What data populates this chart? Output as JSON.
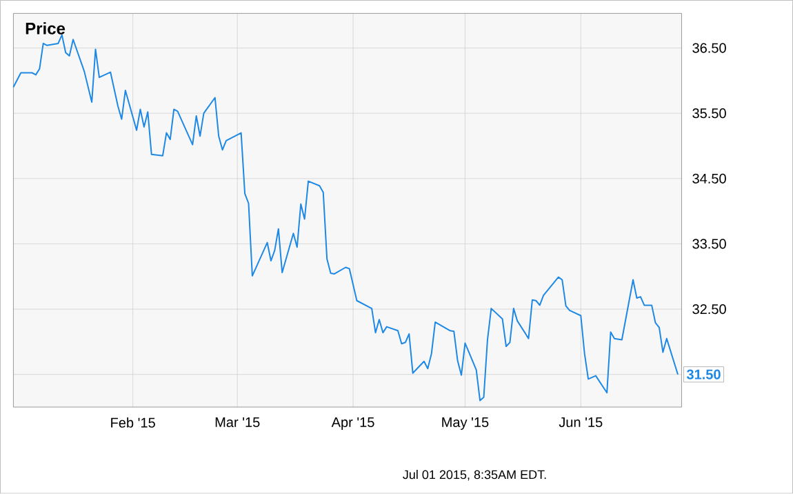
{
  "chart_data": {
    "type": "line",
    "title": "Price",
    "color": "#1e88e5",
    "grid": true,
    "xlim": [
      "2014-12-31",
      "2015-06-28"
    ],
    "ylim": [
      31.0,
      37.03
    ],
    "xticks": [
      {
        "value": "2015-02-01",
        "label": "Feb '15"
      },
      {
        "value": "2015-03-01",
        "label": "Mar '15"
      },
      {
        "value": "2015-04-01",
        "label": "Apr '15"
      },
      {
        "value": "2015-05-01",
        "label": "May '15"
      },
      {
        "value": "2015-06-01",
        "label": "Jun '15"
      }
    ],
    "yticks": [
      {
        "value": 31.5,
        "label": null
      },
      {
        "value": 32.5,
        "label": "32.50"
      },
      {
        "value": 33.5,
        "label": "33.50"
      },
      {
        "value": 34.5,
        "label": "34.50"
      },
      {
        "value": 35.5,
        "label": "35.50"
      },
      {
        "value": 36.5,
        "label": "36.50"
      }
    ],
    "x": [
      "2014-12-31",
      "2015-01-02",
      "2015-01-05",
      "2015-01-06",
      "2015-01-07",
      "2015-01-08",
      "2015-01-09",
      "2015-01-12",
      "2015-01-13",
      "2015-01-14",
      "2015-01-15",
      "2015-01-16",
      "2015-01-19",
      "2015-01-21",
      "2015-01-22",
      "2015-01-23",
      "2015-01-26",
      "2015-01-28",
      "2015-01-29",
      "2015-01-30",
      "2015-02-02",
      "2015-02-03",
      "2015-02-04",
      "2015-02-05",
      "2015-02-06",
      "2015-02-09",
      "2015-02-10",
      "2015-02-11",
      "2015-02-12",
      "2015-02-13",
      "2015-02-17",
      "2015-02-18",
      "2015-02-19",
      "2015-02-20",
      "2015-02-23",
      "2015-02-24",
      "2015-02-25",
      "2015-02-26",
      "2015-03-02",
      "2015-03-03",
      "2015-03-04",
      "2015-03-05",
      "2015-03-09",
      "2015-03-10",
      "2015-03-11",
      "2015-03-12",
      "2015-03-13",
      "2015-03-16",
      "2015-03-17",
      "2015-03-18",
      "2015-03-19",
      "2015-03-20",
      "2015-03-23",
      "2015-03-24",
      "2015-03-25",
      "2015-03-26",
      "2015-03-27",
      "2015-03-30",
      "2015-03-31",
      "2015-04-02",
      "2015-04-06",
      "2015-04-07",
      "2015-04-08",
      "2015-04-09",
      "2015-04-10",
      "2015-04-13",
      "2015-04-14",
      "2015-04-15",
      "2015-04-16",
      "2015-04-17",
      "2015-04-20",
      "2015-04-21",
      "2015-04-22",
      "2015-04-23",
      "2015-04-27",
      "2015-04-28",
      "2015-04-29",
      "2015-04-30",
      "2015-05-01",
      "2015-05-04",
      "2015-05-05",
      "2015-05-06",
      "2015-05-07",
      "2015-05-08",
      "2015-05-11",
      "2015-05-12",
      "2015-05-13",
      "2015-05-14",
      "2015-05-15",
      "2015-05-18",
      "2015-05-19",
      "2015-05-20",
      "2015-05-21",
      "2015-05-22",
      "2015-05-26",
      "2015-05-27",
      "2015-05-28",
      "2015-05-29",
      "2015-06-01",
      "2015-06-02",
      "2015-06-03",
      "2015-06-05",
      "2015-06-08",
      "2015-06-09",
      "2015-06-10",
      "2015-06-12",
      "2015-06-15",
      "2015-06-16",
      "2015-06-17",
      "2015-06-18",
      "2015-06-20",
      "2015-06-21",
      "2015-06-22",
      "2015-06-23",
      "2015-06-24",
      "2015-06-27"
    ],
    "values": [
      35.9,
      36.12,
      36.12,
      36.09,
      36.18,
      36.57,
      36.54,
      36.57,
      36.7,
      36.43,
      36.38,
      36.63,
      36.14,
      35.67,
      36.48,
      36.05,
      36.13,
      35.61,
      35.41,
      35.85,
      35.24,
      35.56,
      35.29,
      35.52,
      34.87,
      34.85,
      35.2,
      35.1,
      35.56,
      35.53,
      35.02,
      35.46,
      35.15,
      35.5,
      35.74,
      35.15,
      34.94,
      35.08,
      35.2,
      34.27,
      34.12,
      33.01,
      33.52,
      33.24,
      33.4,
      33.73,
      33.06,
      33.66,
      33.45,
      34.11,
      33.88,
      34.46,
      34.39,
      34.29,
      33.27,
      33.05,
      33.04,
      33.14,
      33.12,
      32.63,
      32.51,
      32.14,
      32.34,
      32.14,
      32.23,
      32.17,
      31.97,
      31.99,
      32.12,
      31.52,
      31.7,
      31.59,
      31.82,
      32.3,
      32.17,
      32.16,
      31.71,
      31.49,
      31.98,
      31.57,
      31.1,
      31.15,
      32.03,
      32.51,
      32.35,
      31.93,
      31.99,
      32.51,
      32.32,
      32.05,
      32.64,
      32.63,
      32.56,
      32.71,
      32.99,
      32.95,
      32.55,
      32.48,
      32.4,
      31.82,
      31.43,
      31.48,
      31.22,
      32.15,
      32.05,
      32.03,
      32.95,
      32.67,
      32.69,
      32.56,
      32.56,
      32.29,
      32.22,
      31.84,
      32.05,
      31.5
    ],
    "annotations": [
      {
        "text": "31.50",
        "x": "2015-06-27",
        "y": 31.5
      },
      "Jul 01 2015, 8:35AM EDT."
    ]
  }
}
